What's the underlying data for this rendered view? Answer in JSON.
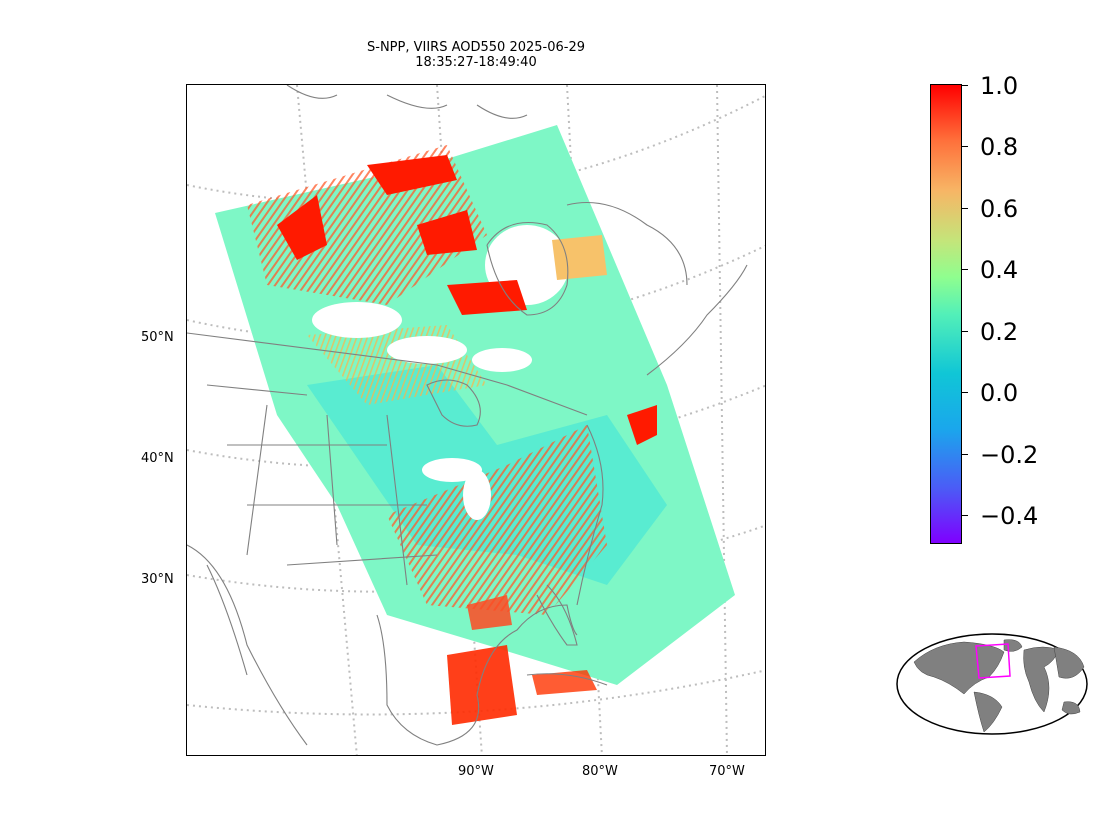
{
  "title": {
    "line1": "S-NPP, VIIRS AOD550 2025-06-29",
    "line2": "18:35:27-18:49:40"
  },
  "map": {
    "lat_labels": [
      "50°N",
      "40°N",
      "30°N"
    ],
    "lon_labels": [
      "90°W",
      "80°W",
      "70°W"
    ],
    "coastline_color": "#808080",
    "graticule_color": "#bdbdbd"
  },
  "colorbar": {
    "range": [
      -0.5,
      1.0
    ],
    "ticks": [
      "1.0",
      "0.8",
      "0.6",
      "0.4",
      "0.2",
      "0.0",
      "−0.2",
      "−0.4"
    ],
    "colormap": "rainbow",
    "colors": {
      "low": "#7f00ff",
      "mid": "#80ffb4",
      "high": "#ff0000"
    }
  },
  "inset": {
    "type": "world-locator",
    "land_color": "#808080",
    "box_color": "#ff00ff"
  }
}
